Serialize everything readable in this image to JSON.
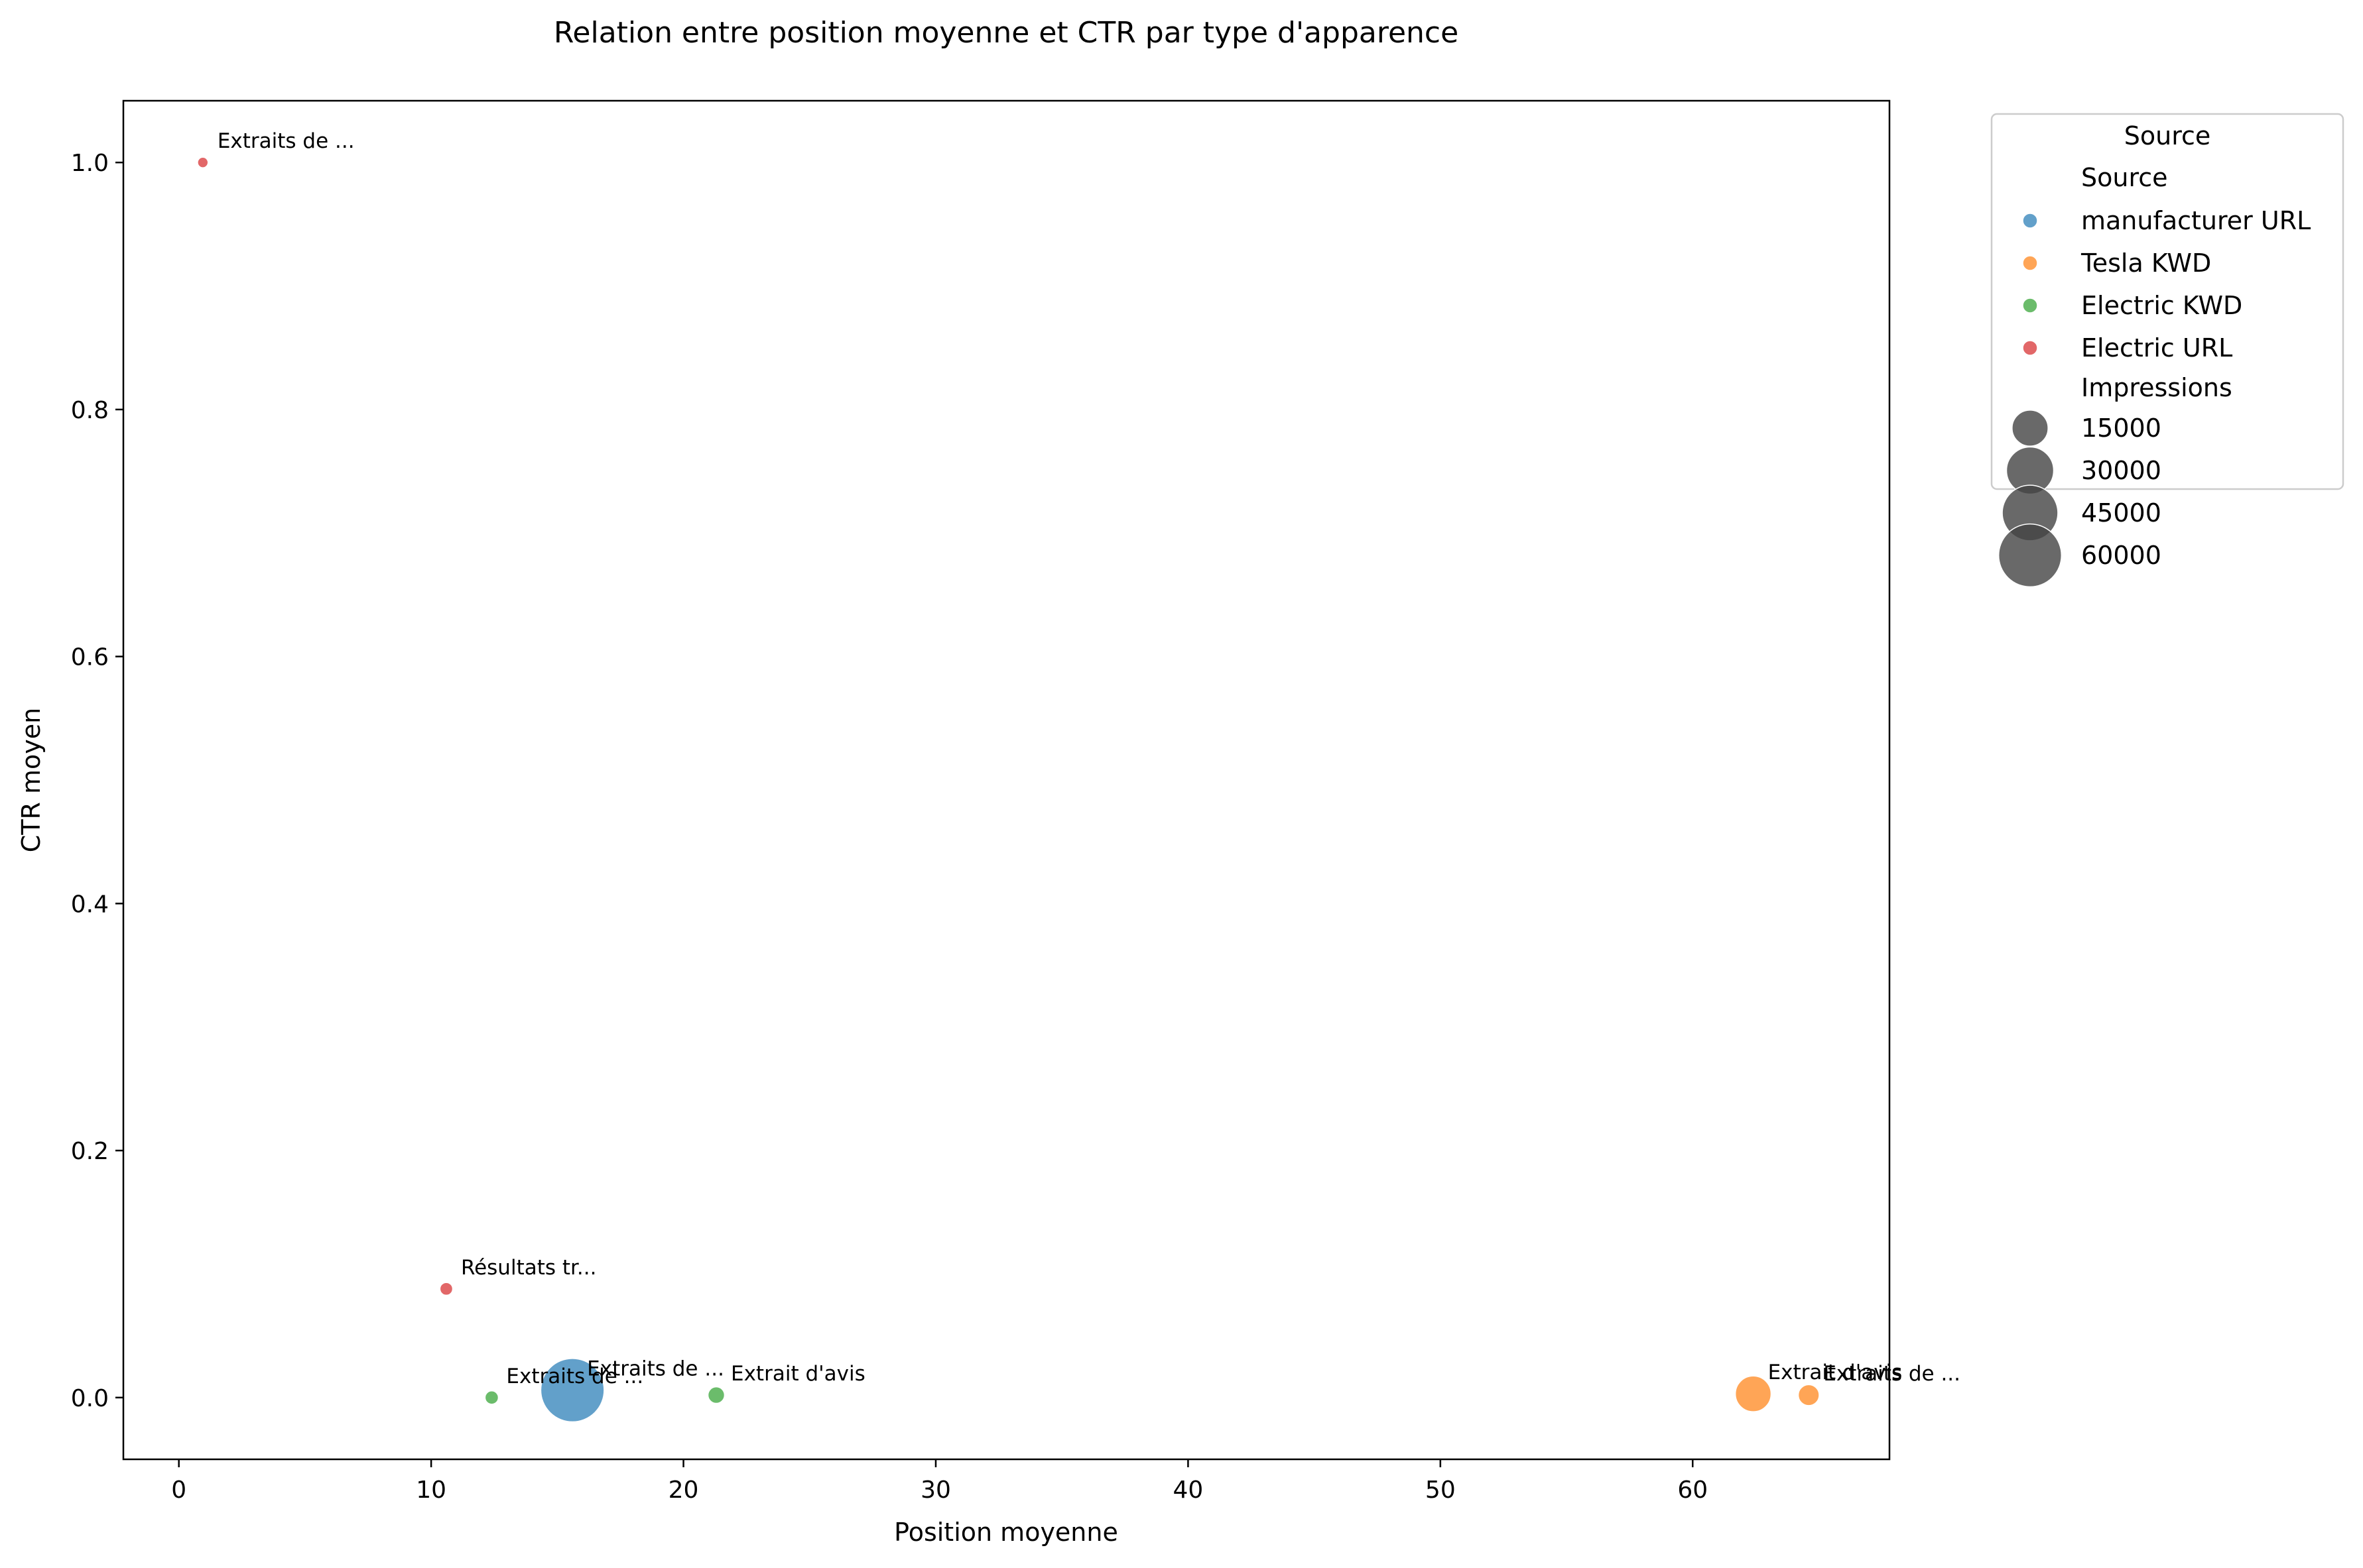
{
  "chart_data": {
    "type": "scatter",
    "title": "Relation entre position moyenne et CTR par type d'apparence",
    "xlabel": "Position moyenne",
    "ylabel": "CTR moyen",
    "xlim": [
      -2.2,
      67.8
    ],
    "ylim": [
      -0.05,
      1.05
    ],
    "x_ticks": [
      0,
      10,
      20,
      30,
      40,
      50,
      60
    ],
    "y_ticks": [
      0.0,
      0.2,
      0.4,
      0.6,
      0.8,
      1.0
    ],
    "x_tick_labels": [
      "0",
      "10",
      "20",
      "30",
      "40",
      "50",
      "60"
    ],
    "y_tick_labels": [
      "0.0",
      "0.2",
      "0.4",
      "0.6",
      "0.8",
      "1.0"
    ],
    "grid": false,
    "legend_placement": "outside-upper-right",
    "legend": {
      "title": "Source",
      "hue_title": "Source",
      "size_title": "Impressions",
      "size_entries": [
        {
          "label": "15000",
          "value": 15000
        },
        {
          "label": "30000",
          "value": 30000
        },
        {
          "label": "45000",
          "value": 45000
        },
        {
          "label": "60000",
          "value": 60000
        }
      ]
    },
    "series": [
      {
        "name": "manufacturer URL",
        "color": "#1f77b4",
        "points": [
          {
            "x": 15.6,
            "y": 0.006,
            "impressions": 62000,
            "label": "Extraits de ..."
          }
        ]
      },
      {
        "name": "Tesla KWD",
        "color": "#ff7f0e",
        "points": [
          {
            "x": 62.4,
            "y": 0.003,
            "impressions": 15000,
            "label": "Extrait d'avis"
          },
          {
            "x": 64.6,
            "y": 0.002,
            "impressions": 3000,
            "label": "Extraits de ..."
          }
        ]
      },
      {
        "name": "Electric KWD",
        "color": "#2ca02c",
        "points": [
          {
            "x": 12.4,
            "y": 0.0,
            "impressions": 400,
            "label": "Extraits de ..."
          },
          {
            "x": 21.3,
            "y": 0.002,
            "impressions": 1200,
            "label": "Extrait d'avis"
          }
        ]
      },
      {
        "name": "Electric URL",
        "color": "#d62728",
        "points": [
          {
            "x": 0.95,
            "y": 1.0,
            "impressions": 50,
            "label": "Extraits de ..."
          },
          {
            "x": 10.6,
            "y": 0.088,
            "impressions": 300,
            "label": "Résultats tr..."
          }
        ]
      }
    ]
  }
}
